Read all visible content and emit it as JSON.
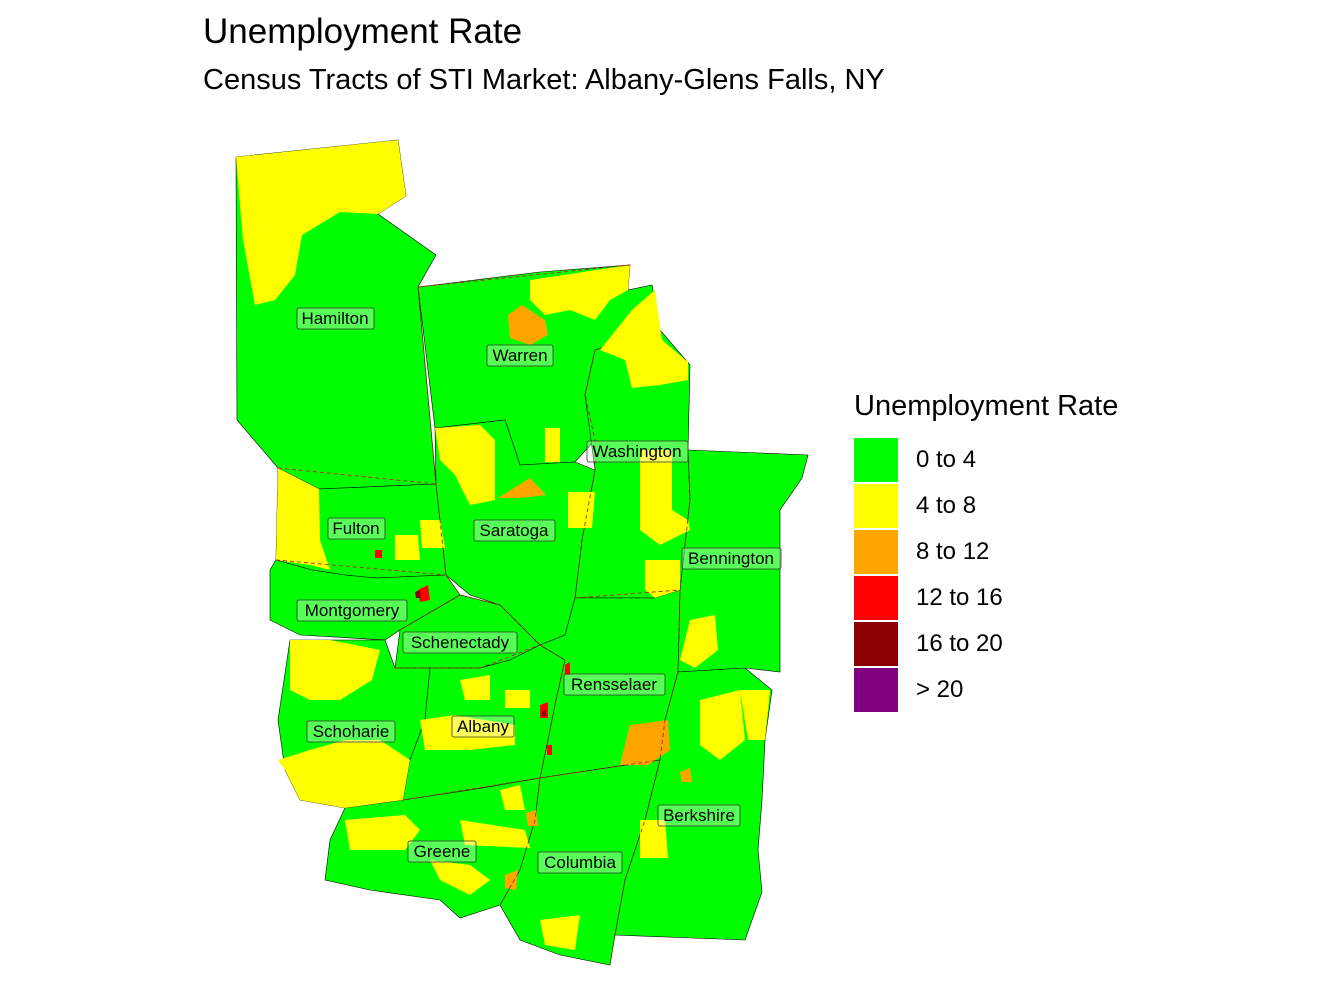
{
  "title": "Unemployment Rate",
  "subtitle": "Census Tracts of STI Market: Albany-Glens Falls, NY",
  "legend": {
    "title": "Unemployment Rate",
    "items": [
      {
        "label": "0 to 4",
        "color": "#00FF00"
      },
      {
        "label": "4 to 8",
        "color": "#FFFF00"
      },
      {
        "label": "8 to 12",
        "color": "#FFA500"
      },
      {
        "label": "12 to 16",
        "color": "#FF0000"
      },
      {
        "label": "16 to 20",
        "color": "#8B0000"
      },
      {
        "label": "> 20",
        "color": "#800080"
      }
    ]
  },
  "counties": {
    "hamilton": "Hamilton",
    "warren": "Warren",
    "washington": "Washington",
    "fulton": "Fulton",
    "saratoga": "Saratoga",
    "bennington": "Bennington",
    "montgomery": "Montgomery",
    "schenectady": "Schenectady",
    "rensselaer": "Rensselaer",
    "albany": "Albany",
    "schoharie": "Schoharie",
    "berkshire": "Berkshire",
    "greene": "Greene",
    "columbia": "Columbia"
  }
}
